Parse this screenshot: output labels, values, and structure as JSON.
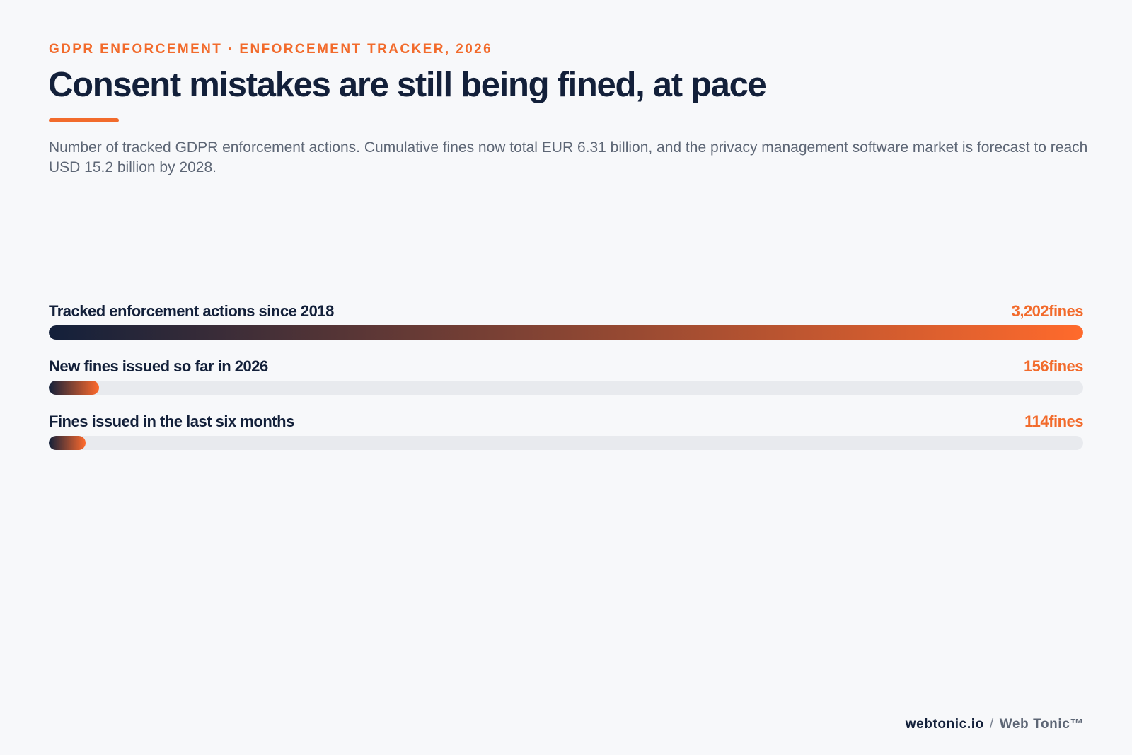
{
  "header": {
    "eyebrow": "GDPR ENFORCEMENT · ENFORCEMENT TRACKER, 2026",
    "title": "Consent mistakes are still being fined, at pace",
    "subtitle": "Number of tracked GDPR enforcement actions. Cumulative fines now total EUR 6.31 billion, and the privacy management software market is forecast to reach USD 15.2 billion by 2028."
  },
  "chart_data": {
    "type": "bar",
    "orientation": "horizontal",
    "unit": "fines",
    "xlim": [
      0,
      3202
    ],
    "categories": [
      "Tracked enforcement actions since 2018",
      "New fines issued so far in 2026",
      "Fines issued in the last six months"
    ],
    "values": [
      3202,
      156,
      114
    ],
    "value_labels": [
      "3,202",
      "156",
      "114"
    ],
    "colors": {
      "gradient_start": "#13203a",
      "gradient_end": "#ff6a2c",
      "track": "#e8eaee",
      "value_text": "#f26b2c"
    }
  },
  "footer": {
    "domain": "webtonic.io",
    "separator": "/",
    "brand": "Web Tonic™"
  }
}
